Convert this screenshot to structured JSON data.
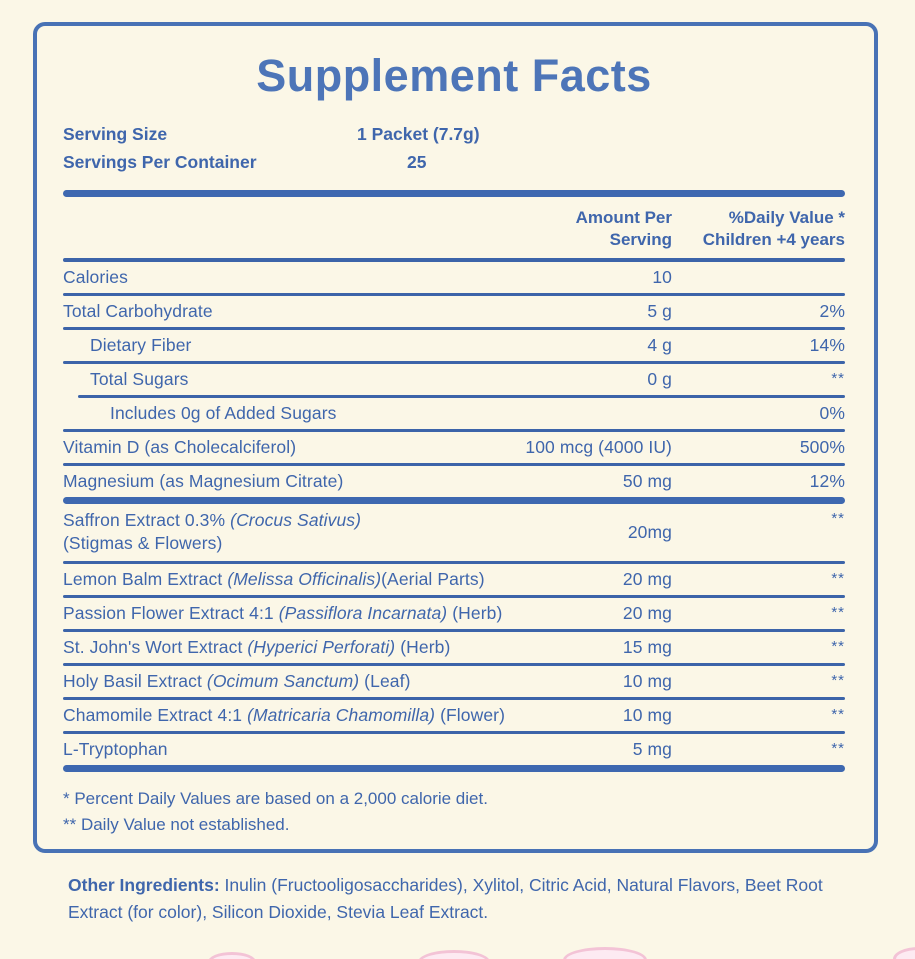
{
  "title": "Supplement Facts",
  "serving": {
    "size_label": "Serving Size",
    "size_value": "1 Packet (7.7g)",
    "container_label": "Servings Per Container",
    "container_value": "25"
  },
  "header": {
    "amount_line1": "Amount Per",
    "amount_line2": "Serving",
    "dv_line1": "%Daily Value *",
    "dv_line2": "Children +4 years"
  },
  "rows": [
    {
      "label": "Calories",
      "amount": "10",
      "dv": ""
    },
    {
      "label": "Total Carbohydrate",
      "amount": "5 g",
      "dv": "2%"
    },
    {
      "label": "Dietary Fiber",
      "amount": "4 g",
      "dv": "14%"
    },
    {
      "label": "Total Sugars",
      "amount": "0 g",
      "dv": "**"
    },
    {
      "label": "Includes 0g of Added Sugars",
      "amount": "",
      "dv": "0%"
    },
    {
      "label": "Vitamin D (as Cholecalciferol)",
      "amount": "100 mcg (4000 IU)",
      "dv": "500%"
    },
    {
      "label": "Magnesium (as Magnesium Citrate)",
      "amount": "50 mg",
      "dv": "12%"
    }
  ],
  "botanical_rows": [
    {
      "pre": "Saffron Extract 0.3% ",
      "it": "(Crocus Sativus)",
      "post": "",
      "line2": "(Stigmas & Flowers)",
      "amount": "20mg",
      "dv": "**"
    },
    {
      "pre": "Lemon Balm Extract ",
      "it": "(Melissa Officinalis)",
      "post": "(Aerial Parts)",
      "amount": "20 mg",
      "dv": "**"
    },
    {
      "pre": "Passion Flower Extract 4:1 ",
      "it": "(Passiflora Incarnata)",
      "post": " (Herb)",
      "amount": "20 mg",
      "dv": "**"
    },
    {
      "pre": "St. John's Wort Extract ",
      "it": "(Hyperici Perforati)",
      "post": " (Herb)",
      "amount": "15 mg",
      "dv": "**"
    },
    {
      "pre": "Holy Basil Extract ",
      "it": "(Ocimum Sanctum)",
      "post": " (Leaf)",
      "amount": "10 mg",
      "dv": "**"
    },
    {
      "pre": "Chamomile Extract 4:1 ",
      "it": "(Matricaria Chamomilla)",
      "post": " (Flower)",
      "amount": "10 mg",
      "dv": "**"
    },
    {
      "pre": "L-Tryptophan",
      "it": "",
      "post": "",
      "amount": "5 mg",
      "dv": "**"
    }
  ],
  "footnotes": {
    "line1": "* Percent Daily Values are based on a 2,000 calorie diet.",
    "line2": "** Daily Value not established."
  },
  "other_ingredients": {
    "label": "Other Ingredients:",
    "text": " Inulin (Fructooligosaccharides), Xylitol, Citric Acid, Natural Flavors, Beet Root Extract (for color), Silicon Dioxide, Stevia Leaf Extract."
  },
  "colors": {
    "background": "#FBF7E7",
    "blue_text": "#3F66AC",
    "blue_title": "#4D75B8",
    "blue_rule": "#3C64A9",
    "blue_border": "#4872B5",
    "pink_accent": "#F3C3D6"
  }
}
